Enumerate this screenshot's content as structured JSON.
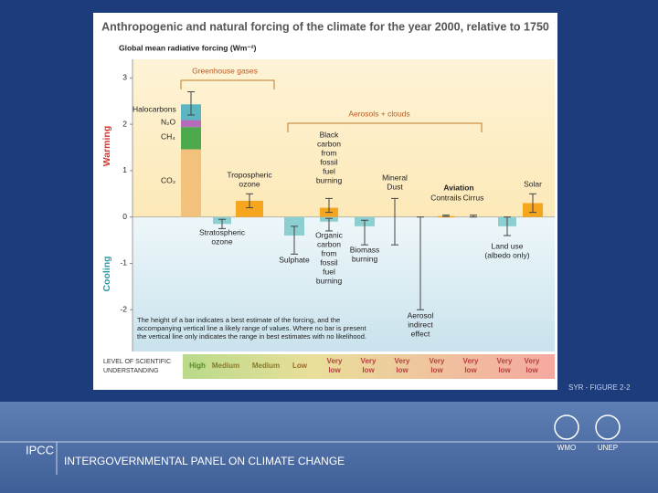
{
  "chart_data": {
    "type": "forcing-bar",
    "title": "Anthropogenic and natural forcing of the climate for the year 2000, relative to 1750",
    "subtitle": "Global mean radiative forcing (Wm⁻²)",
    "ylim": [
      -2.9,
      3.4
    ],
    "yticks": [
      -2,
      -1,
      0,
      1,
      2,
      3
    ],
    "warming_label": "Warming",
    "cooling_label": "Cooling",
    "group_labels": [
      "Greenhouse gases",
      "Aerosols + clouds",
      "Aviation"
    ],
    "greenhouse": {
      "series": [
        {
          "name": "CO₂",
          "color": "#f2c27c",
          "value": 1.46
        },
        {
          "name": "CH₄",
          "color": "#4caa4c",
          "value": 0.48
        },
        {
          "name": "N₂O",
          "color": "#b46cbb",
          "value": 0.15
        },
        {
          "name": "Halocarbons",
          "color": "#5cb6c2",
          "value": 0.34
        }
      ],
      "range": [
        2.2,
        2.7
      ]
    },
    "warming_color": "#f5a51e",
    "cooling_color": "#8ccfd0",
    "forcings": [
      {
        "label": [
          "Stratospheric",
          "ozone"
        ],
        "value": -0.15,
        "range": [
          -0.25,
          -0.05
        ]
      },
      {
        "label": [
          "Tropospheric",
          "ozone"
        ],
        "value": 0.35,
        "range": [
          0.2,
          0.5
        ]
      },
      {
        "label": [
          "Sulphate"
        ],
        "value": -0.4,
        "range": [
          -0.8,
          -0.2
        ]
      },
      {
        "label": [
          "Black",
          "carbon",
          "from",
          "fossil",
          "fuel",
          "burning"
        ],
        "value": 0.2,
        "range": [
          0.1,
          0.4
        ]
      },
      {
        "label": [
          "Organic",
          "carbon",
          "from",
          "fossil",
          "fuel",
          "burning"
        ],
        "value": -0.1,
        "range": [
          -0.3,
          -0.03
        ]
      },
      {
        "label": [
          "Biomass",
          "burning"
        ],
        "value": -0.2,
        "range": [
          -0.6,
          -0.07
        ]
      },
      {
        "label": [
          "Mineral",
          "Dust"
        ],
        "value": null,
        "range": [
          -0.6,
          0.4
        ]
      },
      {
        "label": [
          "Aerosol",
          "indirect",
          "effect"
        ],
        "value": null,
        "range": [
          -2,
          0
        ]
      },
      {
        "label": [
          "Contrails"
        ],
        "value": 0.02,
        "range": [
          0.01,
          0.04
        ]
      },
      {
        "label": [
          "Cirrus"
        ],
        "value": null,
        "range": [
          0,
          0.04
        ]
      },
      {
        "label": [
          "Land use",
          "(albedo only)"
        ],
        "value": -0.2,
        "range": [
          -0.4,
          0
        ]
      },
      {
        "label": [
          "Solar"
        ],
        "value": 0.3,
        "range": [
          0.1,
          0.5
        ]
      }
    ],
    "note": [
      "The height of a bar indicates a best estimate of the forcing, and the",
      "accompanying vertical line a likely range of values. Where no bar is present",
      "the vertical line only indicates the range in best estimates with no likelihood."
    ],
    "understanding": {
      "label": [
        "LEVEL OF SCIENTIFIC",
        "UNDERSTANDING"
      ],
      "levels": [
        [
          "High"
        ],
        [
          "Medium"
        ],
        [
          "Medium"
        ],
        [
          "Low"
        ],
        [
          "Very",
          "low"
        ],
        [
          "Very",
          "low"
        ],
        [
          "Very",
          "low"
        ],
        [
          "Very",
          "low"
        ],
        [
          "Very",
          "low"
        ],
        [
          "Very",
          "low"
        ],
        [
          "Very",
          "low"
        ]
      ]
    },
    "figure_label": "SYR - FIGURE 2-2"
  },
  "footer": {
    "org": "IPCC",
    "name": "INTERGOVERNMENTAL PANEL ON CLIMATE CHANGE",
    "logos": [
      "WMO",
      "UNEP"
    ]
  }
}
